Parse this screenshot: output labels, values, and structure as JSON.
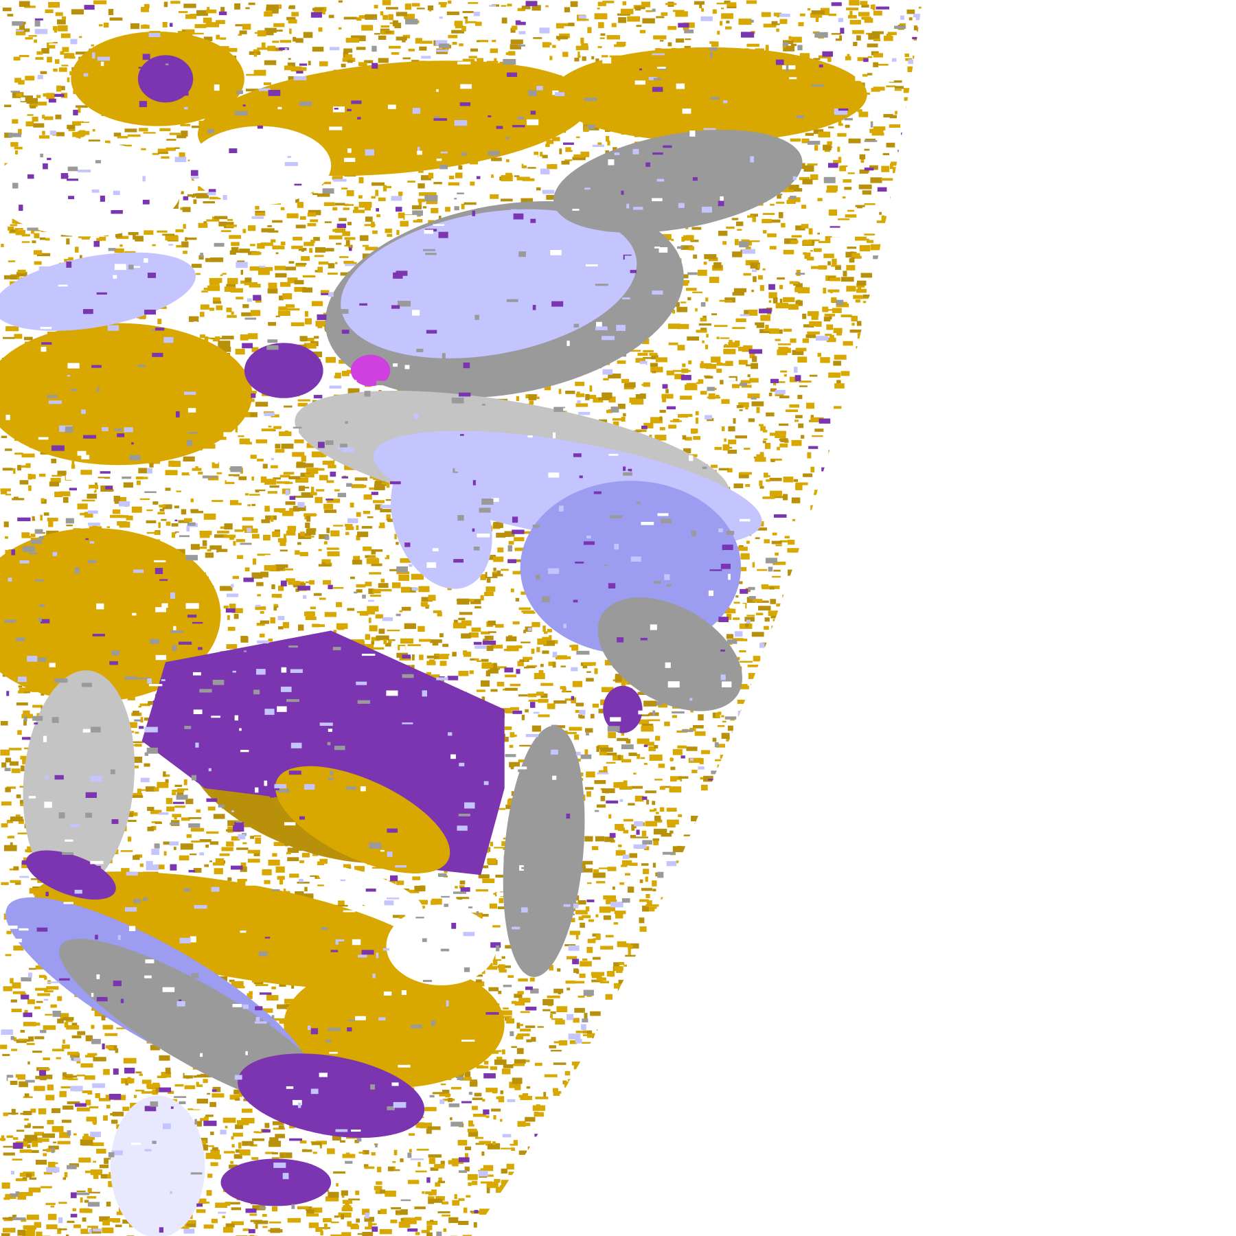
{
  "map": {
    "type": "satellite cloud-classification composite",
    "palette": {
      "background": "#ffffff",
      "gold": "#d9a800",
      "gold_dark": "#b8900a",
      "purple": "#7b35b0",
      "magenta": "#d040e0",
      "gray": "#9a9a9a",
      "gray_light": "#c4c4c4",
      "lavender": "#c4c4ff",
      "lavender_mid": "#9c9cf0",
      "lavender_pale": "#e8e8ff"
    }
  }
}
